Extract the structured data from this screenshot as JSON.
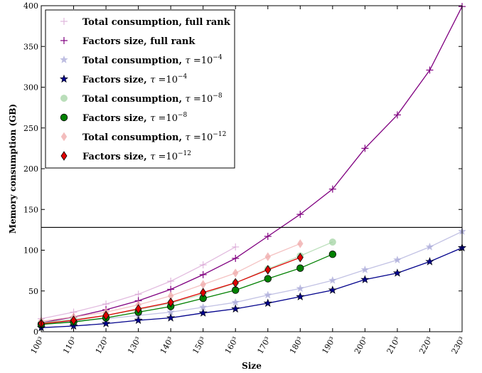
{
  "chart_data": {
    "type": "line",
    "xlabel": "Size",
    "ylabel": "Memory consumption (GB)",
    "x": [
      100,
      110,
      120,
      130,
      140,
      150,
      160,
      170,
      180,
      190,
      200,
      210,
      220,
      230
    ],
    "x_tick_labels": [
      "100³",
      "110³",
      "120³",
      "130³",
      "140³",
      "150³",
      "160³",
      "170³",
      "180³",
      "190³",
      "200³",
      "210³",
      "220³",
      "230³"
    ],
    "xlim": [
      100,
      230
    ],
    "ylim": [
      0,
      400
    ],
    "y_ticks": [
      0,
      50,
      100,
      150,
      200,
      250,
      300,
      350,
      400
    ],
    "legend_position": "top-left",
    "horizontal_line": 128,
    "series": [
      {
        "name": "Total consumption, full rank",
        "color": "#d69ed2",
        "marker": "plus",
        "faded": true,
        "x": [
          100,
          110,
          120,
          130,
          140,
          150,
          160
        ],
        "values": [
          16,
          24,
          34,
          46,
          62,
          82,
          104
        ]
      },
      {
        "name": "Factors size, full rank",
        "color": "#800080",
        "marker": "plus",
        "faded": false,
        "x": [
          100,
          110,
          120,
          130,
          140,
          150,
          160,
          170,
          180,
          190,
          200,
          210,
          220,
          230
        ],
        "values": [
          11,
          18,
          27,
          38,
          52,
          70,
          90,
          117,
          144,
          175,
          225,
          266,
          321,
          399
        ]
      },
      {
        "name": "Total consumption, τ = 10⁻⁴",
        "color": "#a8a8d8",
        "marker": "star",
        "faded": true,
        "x": [
          100,
          110,
          120,
          130,
          140,
          150,
          160,
          170,
          180,
          190,
          200,
          210,
          220,
          230
        ],
        "values": [
          10,
          13,
          16,
          20,
          24,
          30,
          36,
          45,
          53,
          63,
          76,
          88,
          104,
          123
        ]
      },
      {
        "name": "Factors size, τ = 10⁻⁴",
        "color": "#00008b",
        "marker": "star",
        "faded": false,
        "x": [
          100,
          110,
          120,
          130,
          140,
          150,
          160,
          170,
          180,
          190,
          200,
          210,
          220,
          230
        ],
        "values": [
          5,
          7,
          10,
          14,
          17,
          23,
          28,
          35,
          43,
          51,
          64,
          72,
          86,
          103
        ]
      },
      {
        "name": "Total consumption, τ = 10⁻⁸",
        "color": "#a3d4a3",
        "marker": "circle",
        "faded": true,
        "x": [
          100,
          110,
          120,
          130,
          140,
          150,
          160,
          170,
          180,
          190
        ],
        "values": [
          11,
          15,
          20,
          27,
          35,
          46,
          60,
          77,
          93,
          110
        ]
      },
      {
        "name": "Factors size, τ = 10⁻⁸",
        "color": "#008000",
        "marker": "circle",
        "faded": false,
        "x": [
          100,
          110,
          120,
          130,
          140,
          150,
          160,
          170,
          180,
          190
        ],
        "values": [
          9,
          12,
          17,
          24,
          31,
          41,
          51,
          65,
          78,
          95
        ]
      },
      {
        "name": "Total consumption, τ = 10⁻¹²",
        "color": "#f0a8a8",
        "marker": "diamond",
        "faded": true,
        "x": [
          100,
          110,
          120,
          130,
          140,
          150,
          160,
          170,
          180
        ],
        "values": [
          13,
          18,
          24,
          33,
          44,
          58,
          72,
          92,
          108
        ]
      },
      {
        "name": "Factors size, τ = 10⁻¹²",
        "color": "#e00000",
        "marker": "diamond",
        "faded": false,
        "x": [
          100,
          110,
          120,
          130,
          140,
          150,
          160,
          170,
          180
        ],
        "values": [
          10,
          14,
          20,
          28,
          36,
          48,
          60,
          76,
          91
        ]
      }
    ],
    "legend": [
      {
        "text": "Total consumption, full rank",
        "tau": "",
        "exp": ""
      },
      {
        "text": "Factors size, full rank",
        "tau": "",
        "exp": ""
      },
      {
        "text": "Total consumption, ",
        "tau": "τ",
        "eq": "=10",
        "exp": "−4"
      },
      {
        "text": "Factors size, ",
        "tau": "τ",
        "eq": "=10",
        "exp": "−4"
      },
      {
        "text": "Total consumption, ",
        "tau": "τ",
        "eq": "=10",
        "exp": "−8"
      },
      {
        "text": "Factors size, ",
        "tau": "τ",
        "eq": "=10",
        "exp": "−8"
      },
      {
        "text": "Total consumption, ",
        "tau": "τ",
        "eq": "=10",
        "exp": "−12"
      },
      {
        "text": "Factors size, ",
        "tau": "τ",
        "eq": "=10",
        "exp": "−12"
      }
    ]
  }
}
